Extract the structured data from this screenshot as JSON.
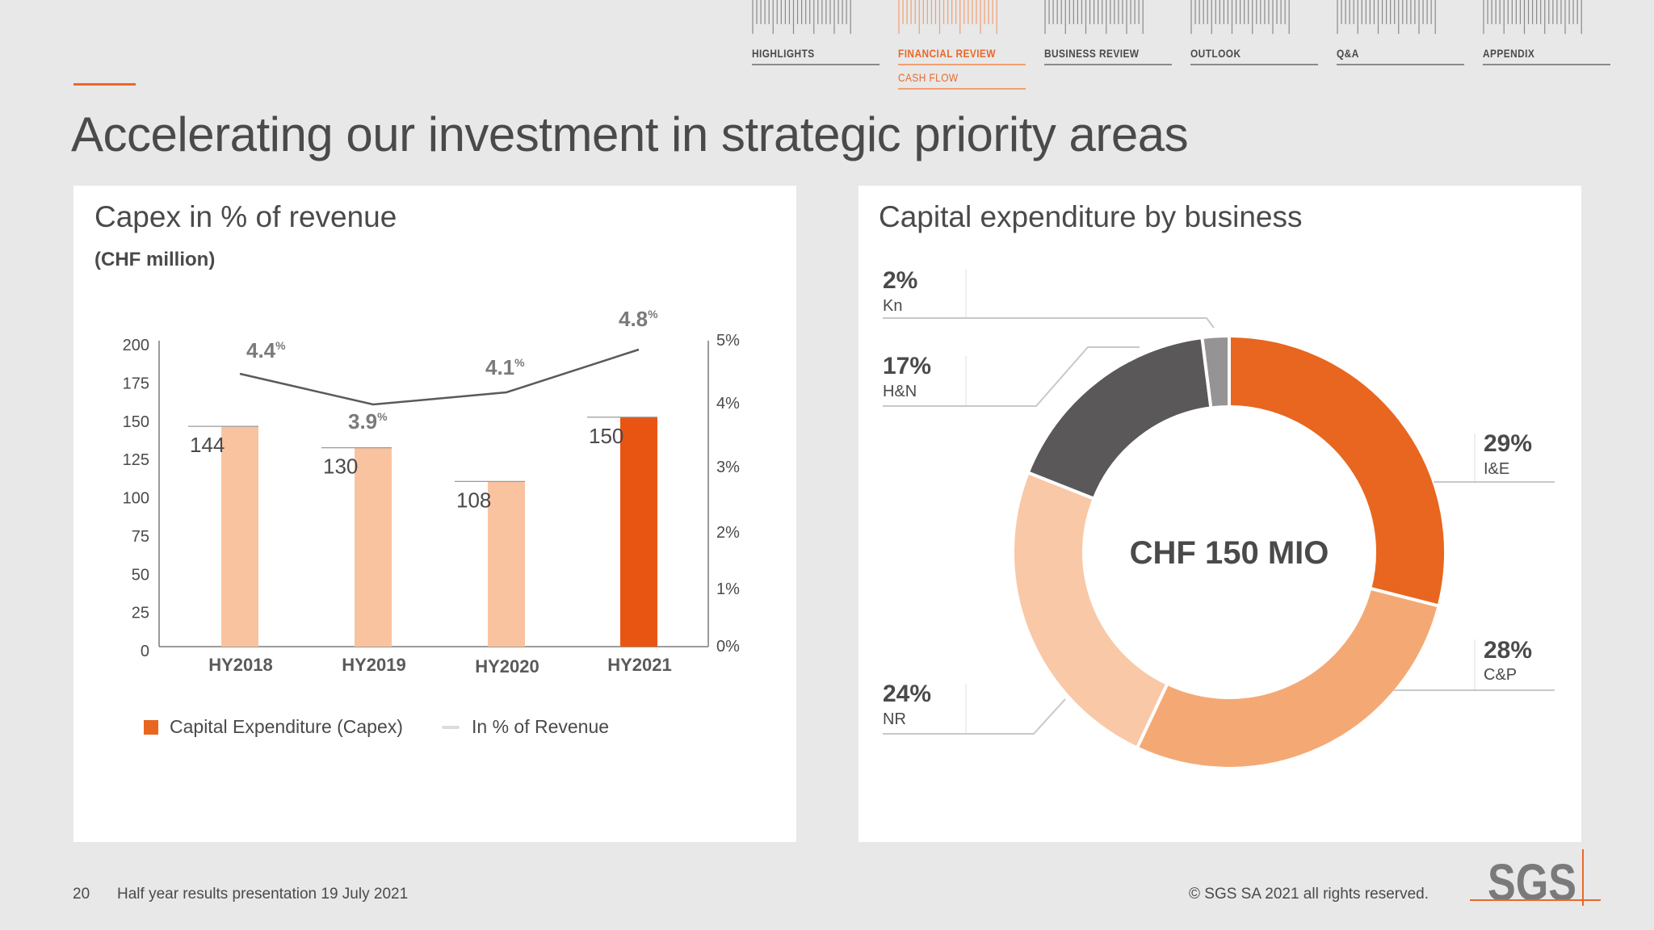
{
  "nav": {
    "items": [
      {
        "label": "HIGHLIGHTS",
        "active": false
      },
      {
        "label": "FINANCIAL REVIEW",
        "active": true
      },
      {
        "label": "BUSINESS REVIEW",
        "active": false
      },
      {
        "label": "OUTLOOK",
        "active": false
      },
      {
        "label": "Q&A",
        "active": false
      },
      {
        "label": "APPENDIX",
        "active": false
      }
    ],
    "subitem": "CASH FLOW"
  },
  "page": {
    "title": "Accelerating our investment in strategic priority areas"
  },
  "left_panel": {
    "title": "Capex in % of revenue",
    "subtitle": "(CHF million)",
    "legend": {
      "capex": "Capital Expenditure (Capex)",
      "pct": "In % of Revenue"
    }
  },
  "right_panel": {
    "title": "Capital expenditure by business",
    "center_label": "CHF 150 MIO"
  },
  "footer": {
    "page_number": "20",
    "presentation": "Half year results presentation 19 July 2021",
    "copyright": "© SGS SA 2021 all rights reserved.",
    "logo": "SGS"
  },
  "colors": {
    "accent": "#e8692a",
    "bar_light": "#f9c3a0",
    "bar_current": "#e85513",
    "line": "#5a5a5a",
    "donut_ie": "#e8661f",
    "donut_cp": "#f4a975",
    "donut_nr": "#f9c8a6",
    "donut_hn": "#5a5859",
    "donut_kn": "#959393"
  },
  "chart_data": [
    {
      "type": "bar",
      "title": "Capex in % of revenue",
      "subtitle": "(CHF million)",
      "categories": [
        "HY2018",
        "HY2019",
        "HY2020",
        "HY2021"
      ],
      "series": [
        {
          "name": "Capital Expenditure (Capex)",
          "type": "bar",
          "axis": "left",
          "values": [
            144,
            130,
            108,
            150
          ],
          "labels": [
            "144",
            "130",
            "108",
            "150"
          ]
        },
        {
          "name": "In % of Revenue",
          "type": "line",
          "axis": "right",
          "values": [
            4.4,
            3.9,
            4.1,
            4.8
          ],
          "labels": [
            "4.4%",
            "3.9%",
            "4.1%",
            "4.8%"
          ]
        }
      ],
      "left_axis": {
        "ticks": [
          "0",
          "25",
          "50",
          "75",
          "100",
          "125",
          "150",
          "175",
          "200"
        ],
        "range": [
          0,
          200
        ]
      },
      "right_axis": {
        "ticks": [
          "0%",
          "1%",
          "2%",
          "3%",
          "4%",
          "5%"
        ],
        "range": [
          0,
          5
        ]
      },
      "legend_position": "bottom",
      "grid": false
    },
    {
      "type": "pie",
      "title": "Capital expenditure by business",
      "center_text": "CHF 150 MIO",
      "slices": [
        {
          "label": "I&E",
          "pct": "29%",
          "value": 29
        },
        {
          "label": "C&P",
          "pct": "28%",
          "value": 28
        },
        {
          "label": "NR",
          "pct": "24%",
          "value": 24
        },
        {
          "label": "H&N",
          "pct": "17%",
          "value": 17
        },
        {
          "label": "Kn",
          "pct": "2%",
          "value": 2
        }
      ]
    }
  ]
}
